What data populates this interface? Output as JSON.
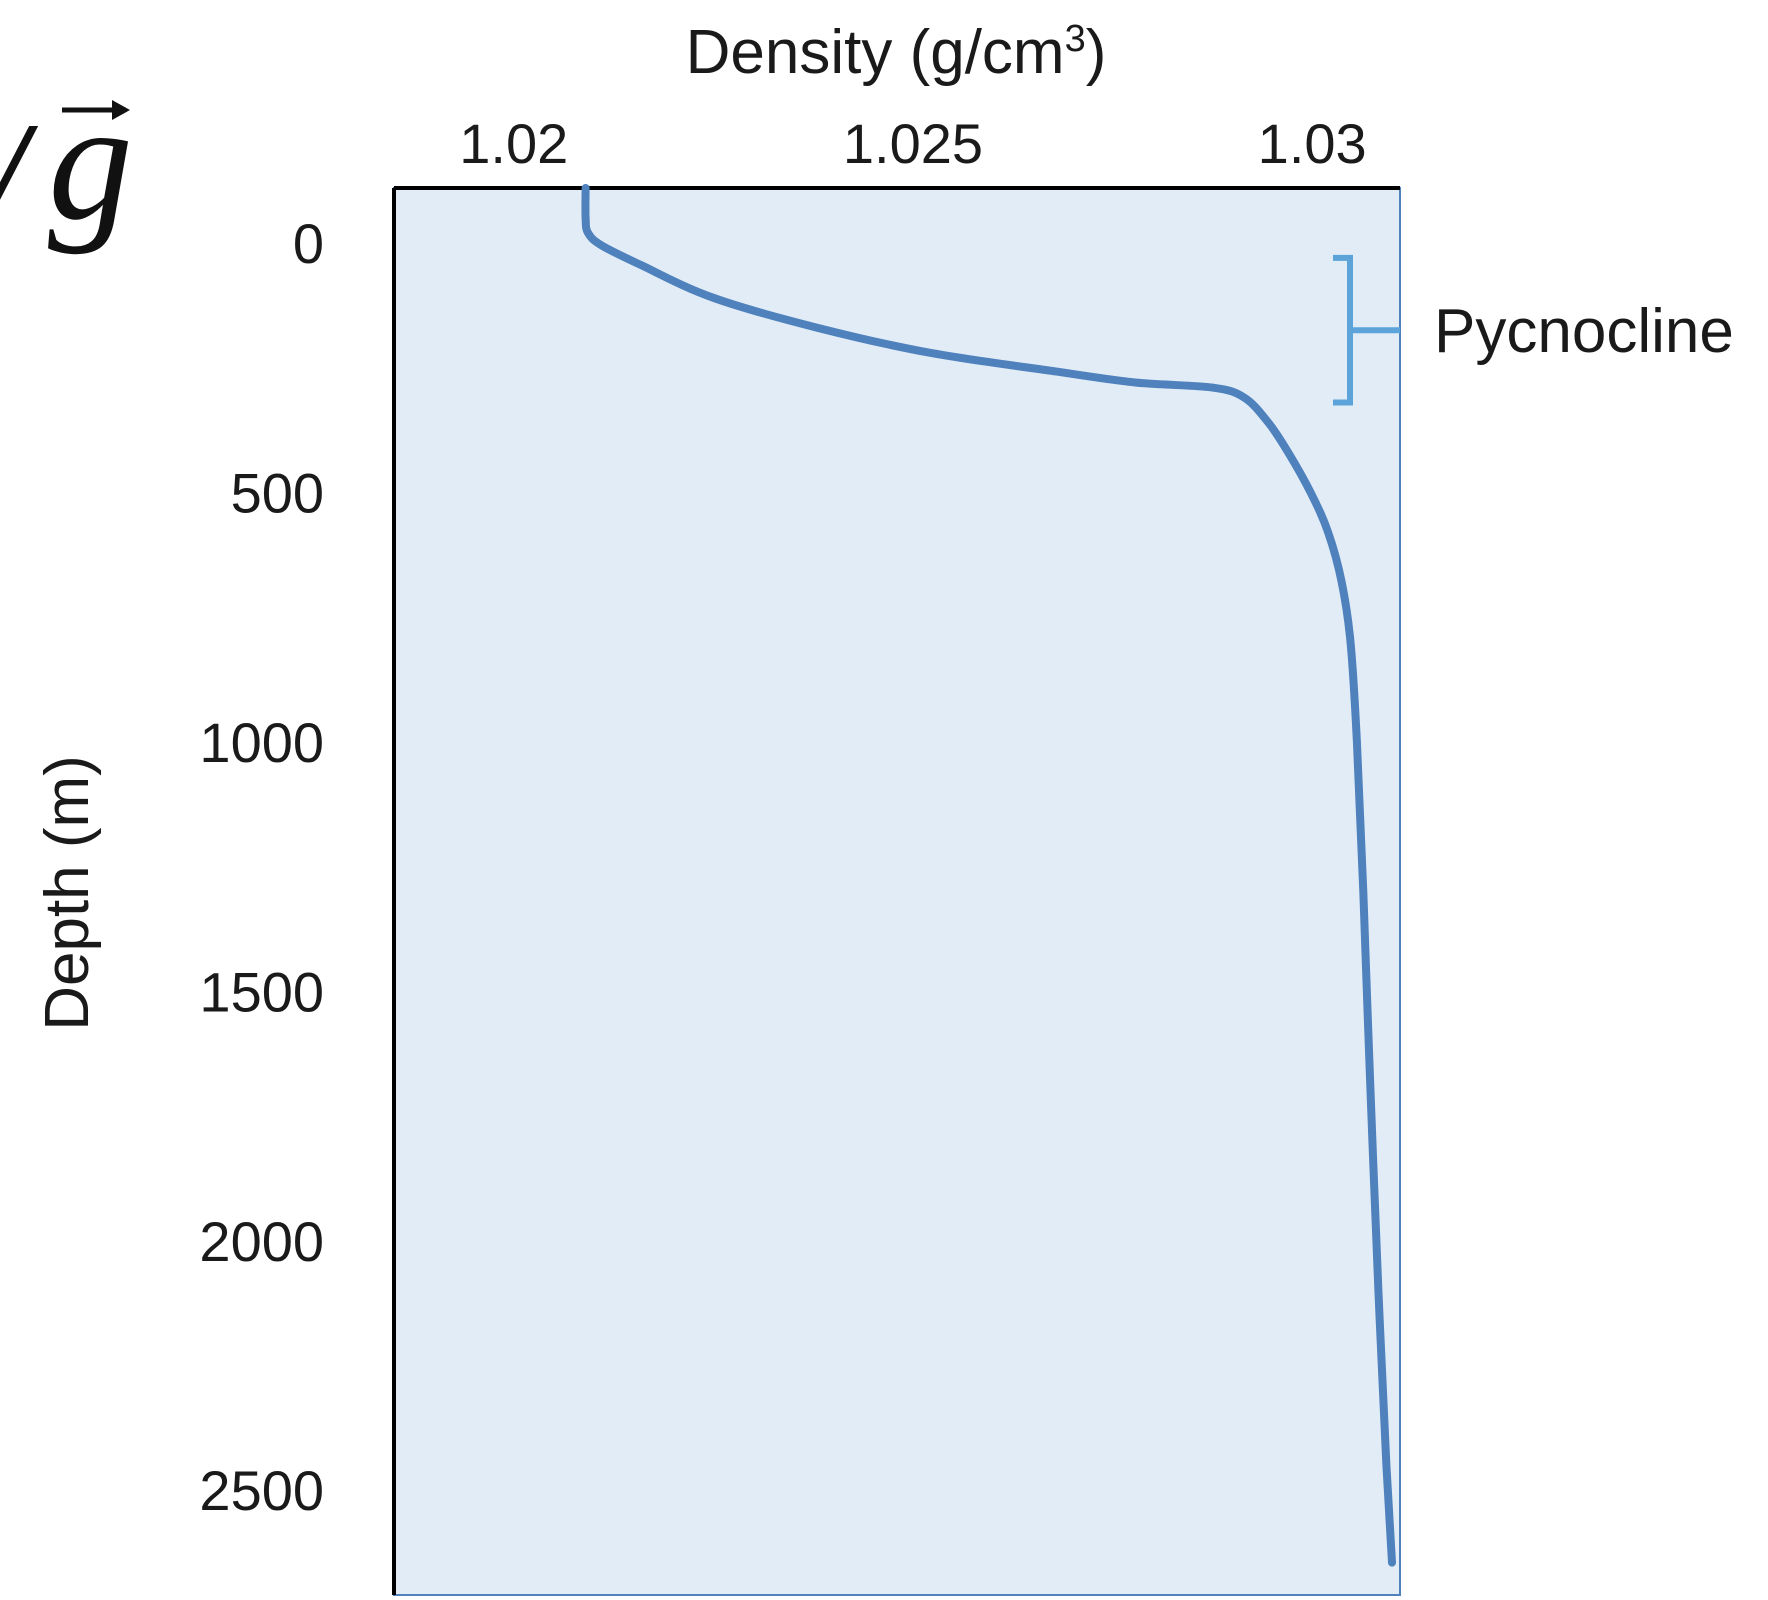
{
  "fragment": {
    "glyph": "g",
    "slash": "/"
  },
  "chart_data": {
    "type": "line",
    "x_axis": {
      "label": "Density (g/cm",
      "label_superscript": "3",
      "label_suffix": ")",
      "position": "top",
      "range": [
        1.0185,
        1.0311
      ],
      "ticks": [
        1.02,
        1.025,
        1.03
      ],
      "tick_labels": [
        "1.02",
        "1.025",
        "1.03"
      ]
    },
    "y_axis": {
      "label": "Depth (m)",
      "inverted": true,
      "range": [
        -110,
        2710
      ],
      "ticks": [
        0,
        500,
        1000,
        1500,
        2000,
        2500
      ],
      "tick_labels": [
        "0",
        "500",
        "1000",
        "1500",
        "2000",
        "2500"
      ]
    },
    "grid": false,
    "legend": "none",
    "series": [
      {
        "color": "#4f81bd",
        "points": [
          [
            1.0209,
            -110
          ],
          [
            1.0209,
            -50
          ],
          [
            1.02093,
            -20
          ],
          [
            1.0211,
            5
          ],
          [
            1.0216,
            45
          ],
          [
            1.0225,
            110
          ],
          [
            1.0238,
            170
          ],
          [
            1.0252,
            220
          ],
          [
            1.0268,
            258
          ],
          [
            1.0278,
            280
          ],
          [
            1.02875,
            290
          ],
          [
            1.02915,
            310
          ],
          [
            1.02945,
            360
          ],
          [
            1.0297,
            420
          ],
          [
            1.02998,
            500
          ],
          [
            1.0302,
            580
          ],
          [
            1.03037,
            680
          ],
          [
            1.03048,
            800
          ],
          [
            1.03056,
            1000
          ],
          [
            1.03064,
            1300
          ],
          [
            1.03073,
            1700
          ],
          [
            1.03083,
            2100
          ],
          [
            1.03093,
            2450
          ],
          [
            1.031,
            2645
          ]
        ]
      }
    ],
    "annotations": [
      {
        "text": "Pycnocline",
        "bracket_depth_range": [
          30,
          320
        ],
        "color": "#5ba3d9"
      }
    ],
    "colors": {
      "plot_background": "#e1ecf7",
      "line": "#4f81bd",
      "bracket": "#5ba3d9",
      "axis": "#000000"
    }
  }
}
